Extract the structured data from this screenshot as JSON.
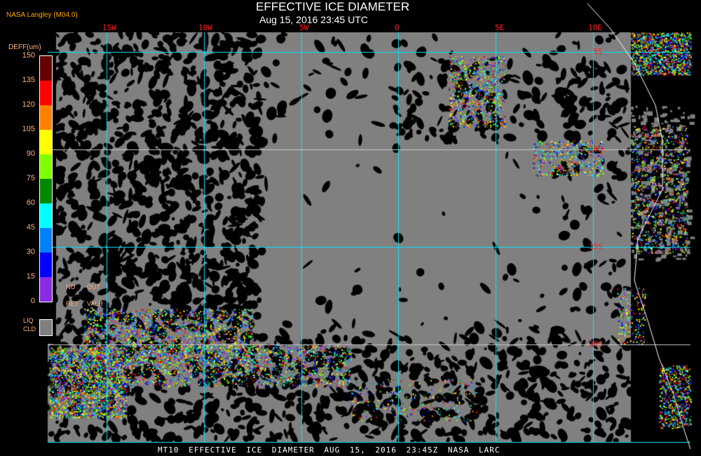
{
  "header": {
    "provider": "NASA Langley (M04.0)",
    "title": "EFFECTIVE ICE DIAMETER",
    "datetime": "Aug 15, 2016 23:45 UTC"
  },
  "grid": {
    "longitudes": [
      "15W",
      "10W",
      "5W",
      "0",
      "5E",
      "10E"
    ],
    "latitudes": [
      "5S",
      "10S",
      "15S",
      "20S"
    ],
    "line_color": "#00e5ff"
  },
  "legend": {
    "title": "DEFF(um)",
    "ticks": [
      "150",
      "135",
      "120",
      "105",
      "90",
      "75",
      "60",
      "45",
      "30",
      "15",
      "0"
    ],
    "colors": [
      "#660000",
      "#ff0000",
      "#ff8000",
      "#ffff00",
      "#80ff00",
      "#008800",
      "#00ffff",
      "#0080ff",
      "#0000ff",
      "#8a2be2"
    ],
    "no_ret": [
      "NO",
      "RET"
    ],
    "out_valr": [
      "OUT",
      "VALR"
    ],
    "liq_cld": [
      "LIQ",
      "CLD"
    ],
    "liq_cld_color": "#808080"
  },
  "footer": {
    "text": "MT10  EFFECTIVE ICE DIAMETER  AUG 15, 2016 23:45Z  NASA LARC"
  }
}
